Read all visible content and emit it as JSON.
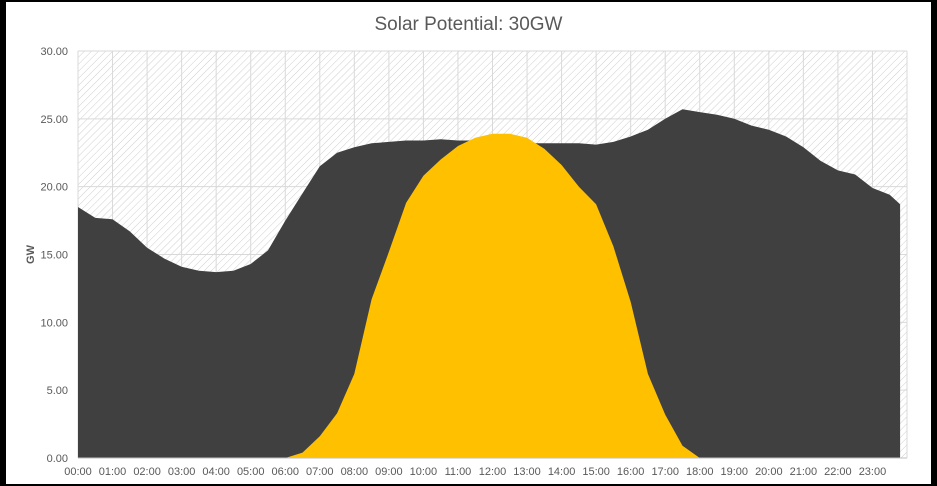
{
  "chart_data": {
    "type": "area",
    "title": "Solar Potential: 30GW",
    "xlabel": "",
    "ylabel": "GW",
    "ylim": [
      0,
      30
    ],
    "y_ticks": [
      "0.00",
      "5.00",
      "10.00",
      "15.00",
      "20.00",
      "25.00",
      "30.00"
    ],
    "x_ticks": [
      "00:00",
      "01:00",
      "02:00",
      "03:00",
      "04:00",
      "05:00",
      "06:00",
      "07:00",
      "08:00",
      "09:00",
      "10:00",
      "11:00",
      "12:00",
      "13:00",
      "14:00",
      "15:00",
      "16:00",
      "17:00",
      "18:00",
      "19:00",
      "20:00",
      "21:00",
      "22:00",
      "23:00"
    ],
    "grid": true,
    "legend": "none",
    "x_hours": [
      0,
      0.5,
      1,
      1.5,
      2,
      2.5,
      3,
      3.5,
      4,
      4.5,
      5,
      5.5,
      6,
      6.5,
      7,
      7.5,
      8,
      8.5,
      9,
      9.5,
      10,
      10.5,
      11,
      11.5,
      12,
      12.5,
      13,
      13.5,
      14,
      14.5,
      15,
      15.5,
      16,
      16.5,
      17,
      17.5,
      18,
      18.5,
      19,
      19.5,
      20,
      20.5,
      21,
      21.5,
      22,
      22.5,
      23,
      23.5,
      23.8
    ],
    "series": [
      {
        "values": [
          18.5,
          17.7,
          17.6,
          16.7,
          15.5,
          14.7,
          14.1,
          13.8,
          13.7,
          13.8,
          14.3,
          15.3,
          17.5,
          19.5,
          21.5,
          22.5,
          22.9,
          23.2,
          23.3,
          23.4,
          23.4,
          23.5,
          23.4,
          23.4,
          23.3,
          23.3,
          23.2,
          23.2,
          23.2,
          23.2,
          23.1,
          23.3,
          23.7,
          24.2,
          25.0,
          25.7,
          25.5,
          25.3,
          25.0,
          24.5,
          24.2,
          23.7,
          22.9,
          21.9,
          21.2,
          20.9,
          19.9,
          19.4,
          18.7
        ],
        "color": "#404040"
      },
      {
        "values": [
          0,
          0,
          0,
          0,
          0,
          0,
          0,
          0,
          0,
          0,
          0,
          0,
          0,
          0.4,
          1.6,
          3.3,
          6.2,
          11.7,
          15.2,
          18.8,
          20.8,
          22.0,
          23.0,
          23.6,
          23.9,
          23.9,
          23.6,
          22.8,
          21.6,
          20.0,
          18.7,
          15.6,
          11.5,
          6.2,
          3.2,
          0.9,
          0,
          0,
          0,
          0,
          0,
          0,
          0,
          0,
          0,
          0,
          0,
          0,
          0
        ],
        "color": "#FFC000"
      }
    ]
  }
}
